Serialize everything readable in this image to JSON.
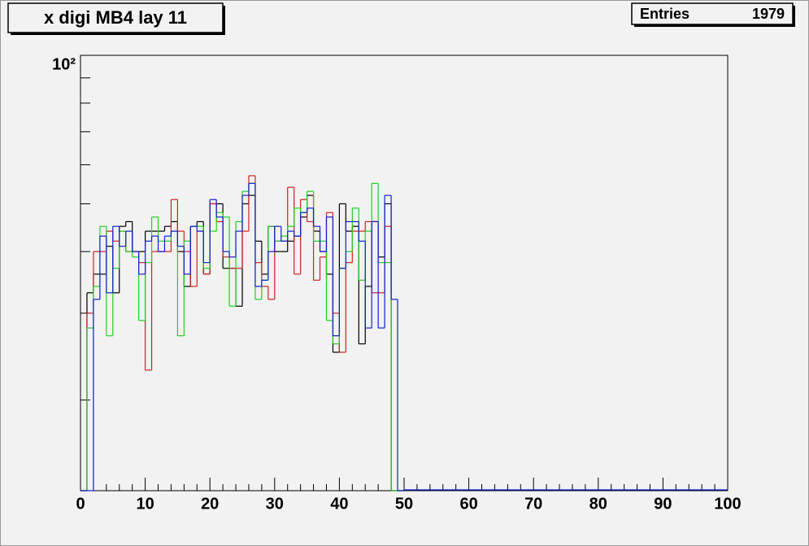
{
  "chart_data": {
    "type": "step-histogram",
    "title": "x digi MB4 lay 11",
    "stats": {
      "label": "Entries",
      "value": 1979
    },
    "log_y": true,
    "bins": [
      0,
      1,
      2,
      3,
      4,
      5,
      6,
      7,
      8,
      9,
      10,
      11,
      12,
      13,
      14,
      15,
      16,
      17,
      18,
      19,
      20,
      21,
      22,
      23,
      24,
      25,
      26,
      27,
      28,
      29,
      30,
      31,
      32,
      33,
      34,
      35,
      36,
      37,
      38,
      39,
      40,
      41,
      42,
      43,
      44,
      45,
      46,
      47,
      48,
      49,
      50
    ],
    "xlim": [
      0,
      100
    ],
    "xticks": [
      0,
      10,
      20,
      30,
      40,
      50,
      60,
      70,
      80,
      90,
      100
    ],
    "ylim": [
      13.1,
      100
    ],
    "yticks": [
      {
        "value": 100,
        "label": "10²"
      }
    ],
    "yminor_ticks": [
      20,
      30,
      40,
      50,
      60,
      70,
      80,
      90
    ],
    "series": [
      {
        "color": "#000000",
        "values": [
          0,
          33,
          36,
          36,
          41,
          33,
          45,
          46,
          40,
          40,
          44,
          44,
          44,
          45,
          46,
          40,
          34,
          45,
          46,
          36,
          50,
          50,
          37,
          37,
          31,
          50,
          52,
          42,
          36,
          45,
          40,
          40,
          42,
          43,
          47,
          52,
          44,
          40,
          36,
          25,
          50,
          44,
          45,
          26,
          34,
          46,
          39,
          50,
          0,
          0
        ]
      },
      {
        "color": "#d02020",
        "values": [
          0,
          30,
          40,
          40,
          44,
          42,
          44,
          40,
          40,
          38,
          23,
          40,
          40,
          40,
          51,
          44,
          40,
          34,
          44,
          36,
          50,
          46,
          39,
          37,
          37,
          44,
          57,
          38,
          34,
          32,
          42,
          42,
          54,
          36,
          51,
          46,
          35,
          39,
          48,
          30,
          25,
          38,
          44,
          44,
          46,
          33,
          33,
          45,
          0,
          0
        ]
      },
      {
        "color": "#20d020",
        "values": [
          0,
          28,
          34,
          45,
          27,
          37,
          44,
          40,
          39,
          29,
          38,
          47,
          42,
          42,
          44,
          27,
          42,
          45,
          45,
          37,
          44,
          48,
          47,
          31,
          46,
          53,
          55,
          32,
          35,
          45,
          42,
          43,
          45,
          49,
          48,
          53,
          42,
          42,
          29,
          26,
          37,
          40,
          49,
          35,
          44,
          55,
          38,
          38,
          0,
          0
        ]
      },
      {
        "color": "#1020d0",
        "values": [
          0,
          0,
          32,
          43,
          33,
          45,
          41,
          44,
          40,
          36,
          42,
          43,
          40,
          43,
          44,
          41,
          36,
          45,
          44,
          38,
          51,
          47,
          40,
          39,
          44,
          52,
          55,
          34,
          35,
          40,
          45,
          42,
          44,
          43,
          48,
          49,
          45,
          40,
          47,
          27,
          37,
          46,
          46,
          42,
          28,
          46,
          28,
          52,
          32,
          0
        ]
      }
    ]
  }
}
